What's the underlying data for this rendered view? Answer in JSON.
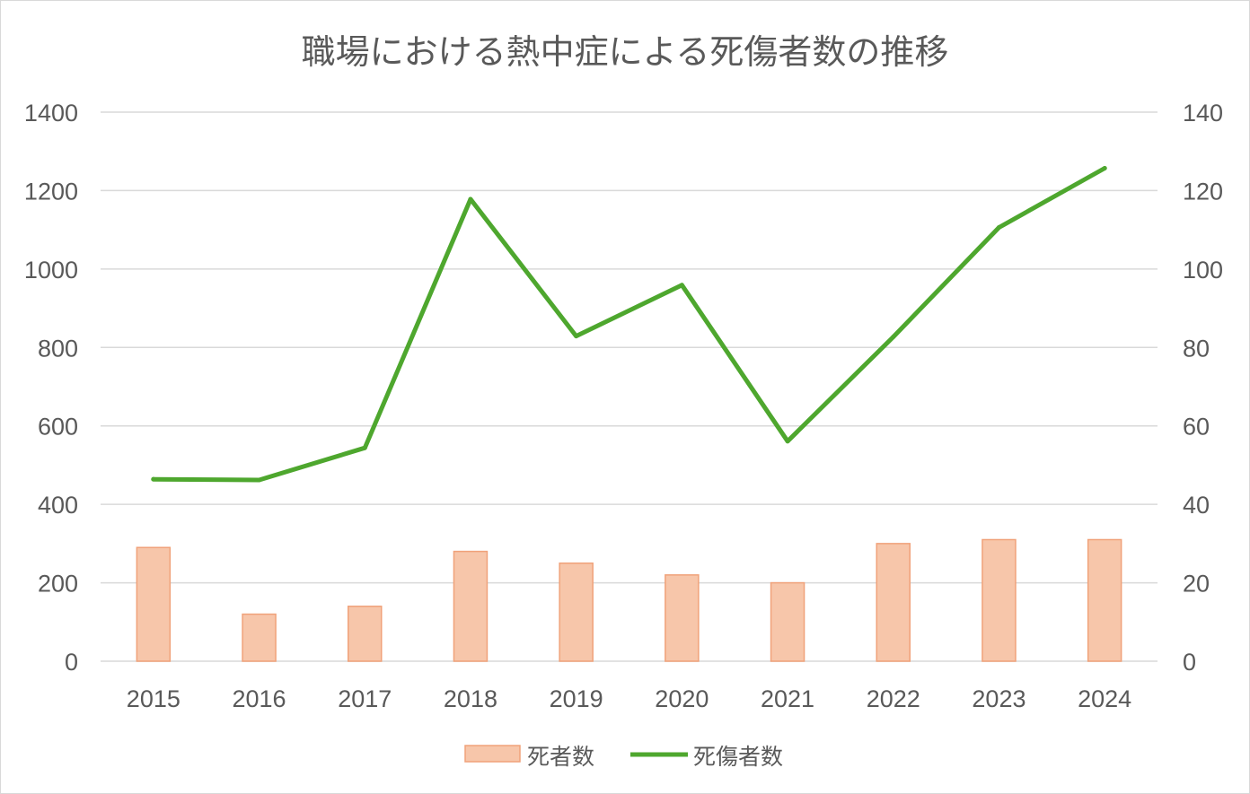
{
  "chart_data": {
    "type": "bar",
    "title": "職場における熱中症による死傷者数の推移",
    "categories": [
      "2015",
      "2016",
      "2017",
      "2018",
      "2019",
      "2020",
      "2021",
      "2022",
      "2023",
      "2024"
    ],
    "series": [
      {
        "name": "死者数",
        "type": "bar",
        "axis": "right",
        "color": "#f7c6aa",
        "edge_color": "#f0a27a",
        "values": [
          29,
          12,
          14,
          28,
          25,
          22,
          20,
          30,
          31,
          31
        ]
      },
      {
        "name": "死傷者数",
        "type": "line",
        "axis": "left",
        "color": "#4ea72e",
        "values": [
          464,
          462,
          544,
          1178,
          829,
          959,
          561,
          827,
          1106,
          1257
        ]
      }
    ],
    "y_left": {
      "ylim": [
        0,
        1400
      ],
      "ticks": [
        "0",
        "200",
        "400",
        "600",
        "800",
        "1000",
        "1200",
        "1400"
      ]
    },
    "y_right": {
      "ylim": [
        0,
        140
      ],
      "ticks": [
        "0",
        "20",
        "40",
        "60",
        "80",
        "100",
        "120",
        "140"
      ]
    },
    "xlabel": "",
    "ylabel": "",
    "grid": true,
    "legend_position": "bottom"
  }
}
